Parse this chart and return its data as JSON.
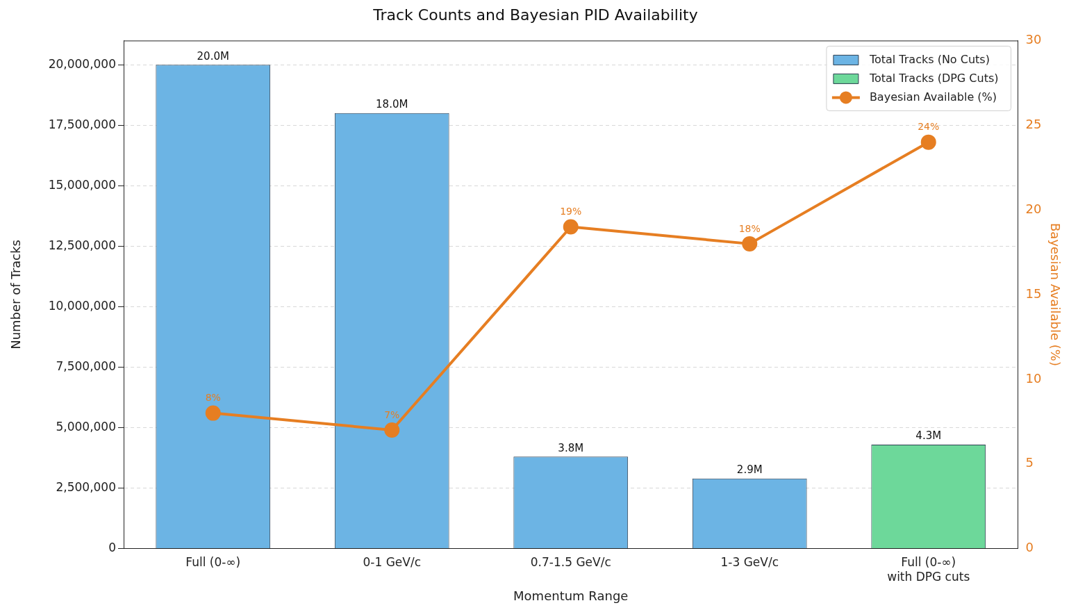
{
  "chart_data": {
    "type": "bar",
    "title": "Track Counts and Bayesian PID Availability",
    "xlabel": "Momentum Range",
    "ylabel": "Number of Tracks",
    "y2label": "Bayesian Available (%)",
    "categories": [
      "Full (0-∞)",
      "0-1 GeV/c",
      "0.7-1.5 GeV/c",
      "1-3 GeV/c",
      "Full (0-∞)\nwith DPG cuts"
    ],
    "series": [
      {
        "name": "Total Tracks (No Cuts)",
        "color": "#6cb4e4",
        "values": [
          20000000,
          18000000,
          3800000,
          2900000,
          null
        ],
        "value_labels": [
          "20.0M",
          "18.0M",
          "3.8M",
          "2.9M",
          null
        ]
      },
      {
        "name": "Total Tracks (DPG Cuts)",
        "color": "#6dd89a",
        "values": [
          null,
          null,
          null,
          null,
          4300000
        ],
        "value_labels": [
          null,
          null,
          null,
          null,
          "4.3M"
        ]
      },
      {
        "name": "Bayesian Available (%)",
        "type": "line",
        "axis": "y2",
        "color": "#e67e22",
        "marker": "circle",
        "values": [
          8,
          7,
          19,
          18,
          24
        ],
        "value_labels": [
          "8%",
          "7%",
          "19%",
          "18%",
          "24%"
        ]
      }
    ],
    "ylim": [
      0,
      21000000
    ],
    "yticks": [
      {
        "value": 0,
        "label": "0"
      },
      {
        "value": 2500000,
        "label": "2,500,000"
      },
      {
        "value": 5000000,
        "label": "5,000,000"
      },
      {
        "value": 7500000,
        "label": "7,500,000"
      },
      {
        "value": 10000000,
        "label": "10,000,000"
      },
      {
        "value": 12500000,
        "label": "12,500,000"
      },
      {
        "value": 15000000,
        "label": "15,000,000"
      },
      {
        "value": 17500000,
        "label": "17,500,000"
      },
      {
        "value": 20000000,
        "label": "20,000,000"
      }
    ],
    "y2lim": [
      0,
      30
    ],
    "y2ticks": [
      0,
      5,
      10,
      15,
      20,
      25,
      30
    ],
    "grid": "y",
    "legend": "top right"
  }
}
